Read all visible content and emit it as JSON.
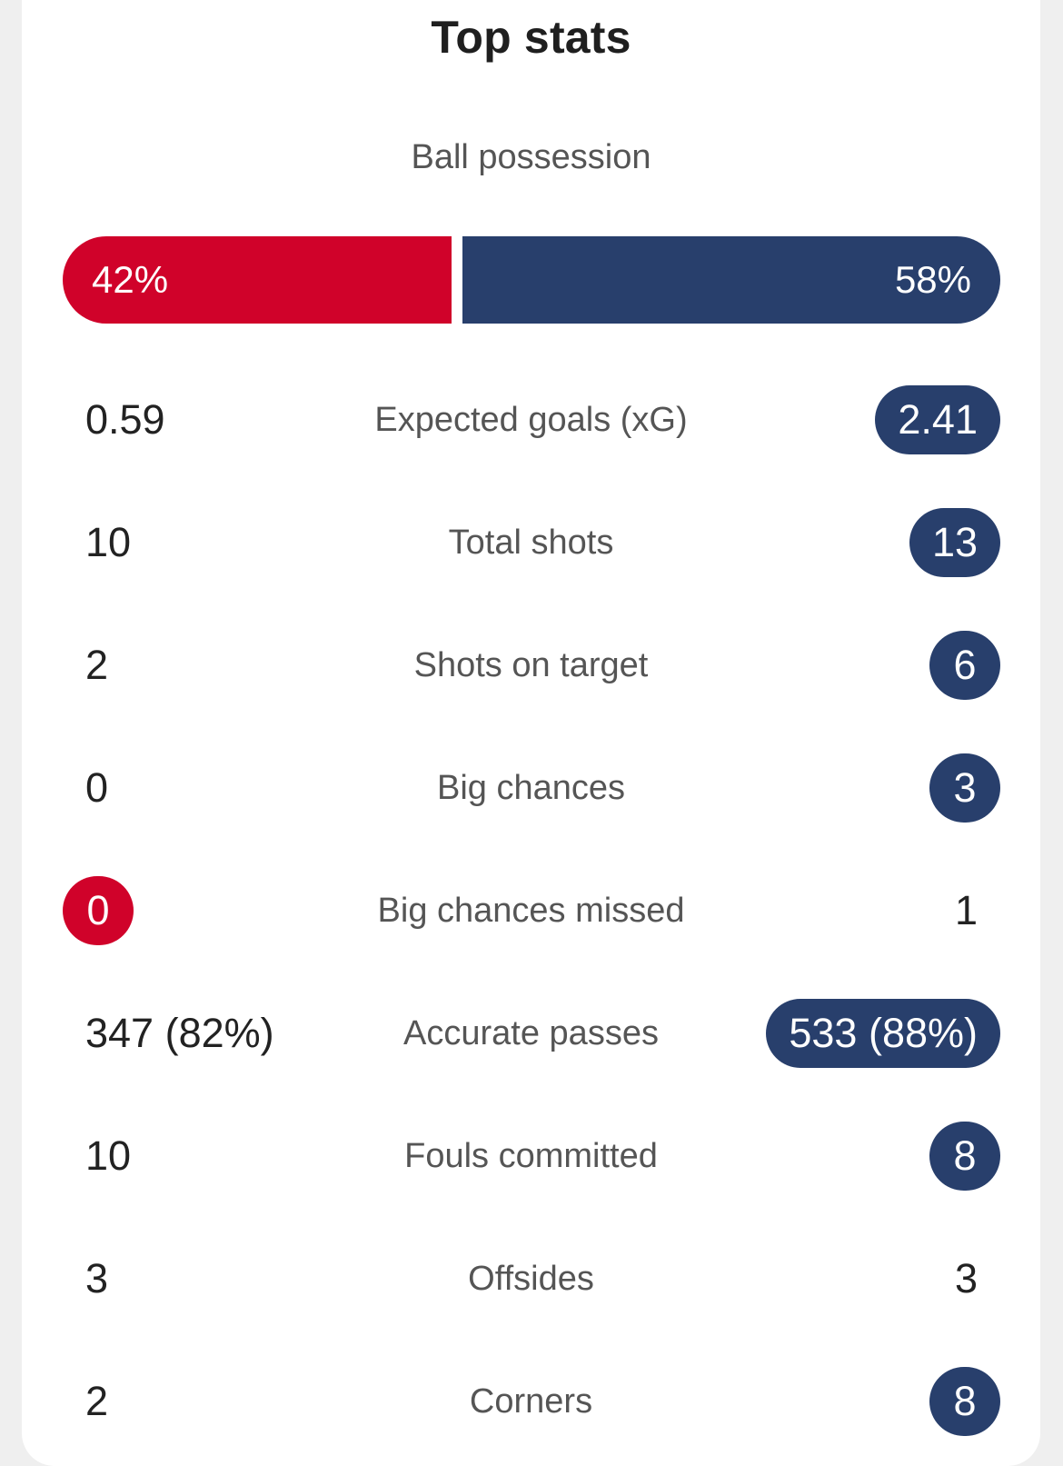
{
  "title": "Top stats",
  "possession": {
    "label": "Ball possession",
    "home_value": "42%",
    "away_value": "58%",
    "home_fraction": 0.42,
    "away_fraction": 0.58
  },
  "colors": {
    "home": "#d0022a",
    "away": "#283f6c"
  },
  "stats": [
    {
      "label": "Expected goals (xG)",
      "home": "0.59",
      "away": "2.41",
      "highlight": "away"
    },
    {
      "label": "Total shots",
      "home": "10",
      "away": "13",
      "highlight": "away"
    },
    {
      "label": "Shots on target",
      "home": "2",
      "away": "6",
      "highlight": "away"
    },
    {
      "label": "Big chances",
      "home": "0",
      "away": "3",
      "highlight": "away"
    },
    {
      "label": "Big chances missed",
      "home": "0",
      "away": "1",
      "highlight": "home"
    },
    {
      "label": "Accurate passes",
      "home": "347 (82%)",
      "away": "533 (88%)",
      "highlight": "away"
    },
    {
      "label": "Fouls committed",
      "home": "10",
      "away": "8",
      "highlight": "away"
    },
    {
      "label": "Offsides",
      "home": "3",
      "away": "3",
      "highlight": "none"
    },
    {
      "label": "Corners",
      "home": "2",
      "away": "8",
      "highlight": "away"
    }
  ]
}
